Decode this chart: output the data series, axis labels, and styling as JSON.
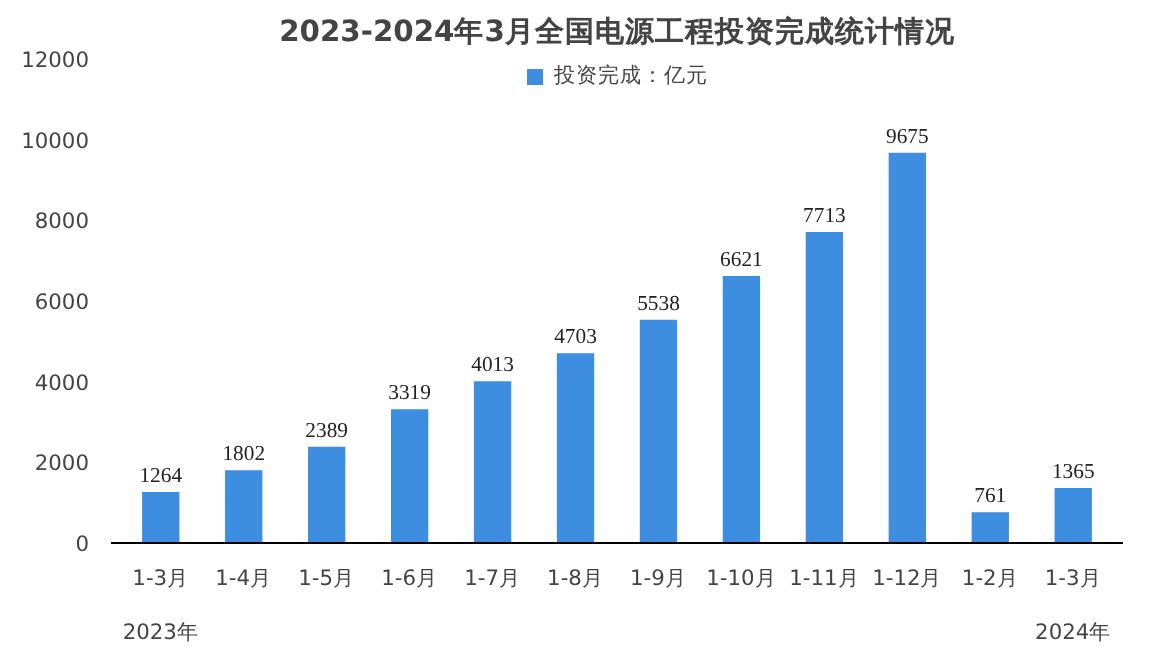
{
  "chart_data": {
    "type": "bar",
    "title": "2023-2024年3月全国电源工程投资完成统计情况",
    "categories": [
      "1-3月",
      "1-4月",
      "1-5月",
      "1-6月",
      "1-7月",
      "1-8月",
      "1-9月",
      "1-10月",
      "1-11月",
      "1-12月",
      "1-2月",
      "1-3月"
    ],
    "series": [
      {
        "name": "投资完成：亿元",
        "color": "#3d8ee0",
        "values": [
          1264,
          1802,
          2389,
          3319,
          4013,
          4703,
          5538,
          6621,
          7713,
          9675,
          761,
          1365
        ]
      }
    ],
    "ylim": [
      0,
      12000
    ],
    "yticks": [
      0,
      2000,
      4000,
      6000,
      8000,
      10000,
      12000
    ],
    "data_labels": true,
    "grid": false,
    "legend": "top",
    "annotations": [
      "2023年",
      "2024年"
    ]
  }
}
